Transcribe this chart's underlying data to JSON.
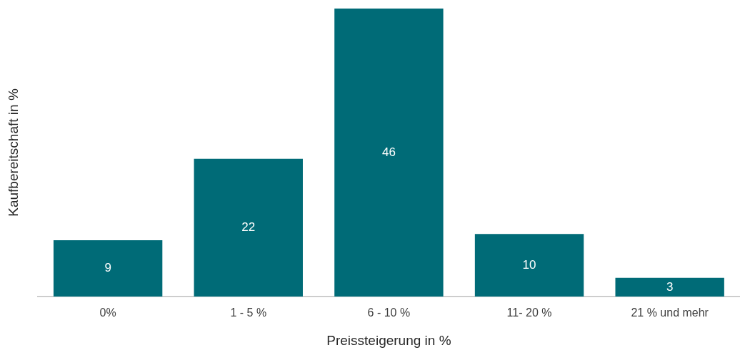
{
  "chart_data": {
    "type": "bar",
    "xlabel": "Preissteigerung in %",
    "ylabel": "Kaufbereitschaft in %",
    "categories": [
      "0%",
      "1 - 5 %",
      "6 - 10 %",
      "11- 20 %",
      "21 % und mehr"
    ],
    "values": [
      9,
      22,
      46,
      10,
      3
    ],
    "color": "#006b77",
    "data_labels": true,
    "grid": false,
    "legend": false,
    "tick_labels": "x"
  }
}
